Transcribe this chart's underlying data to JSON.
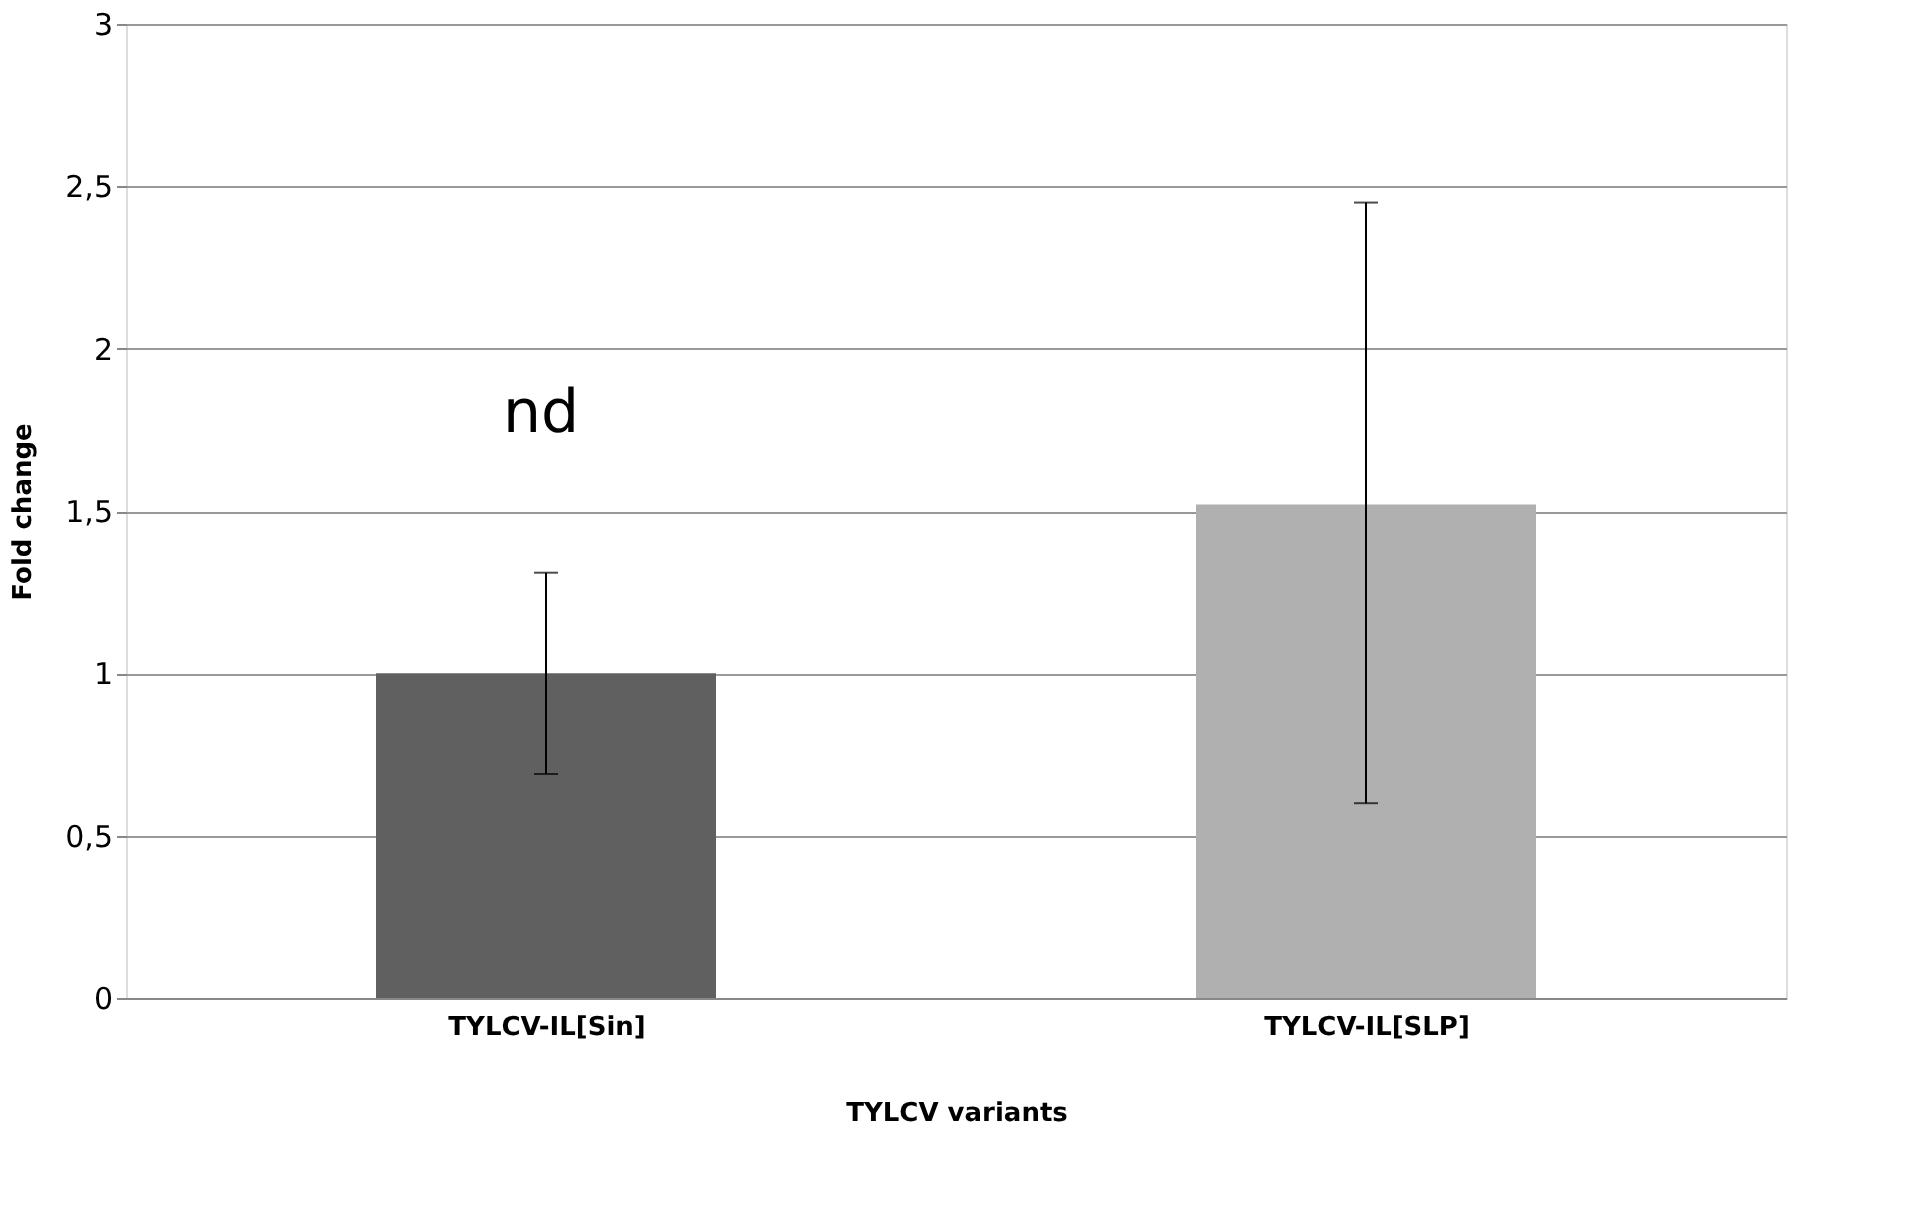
{
  "chart_data": {
    "type": "bar",
    "xlabel": "TYLCV variants",
    "ylabel": "Fold change",
    "categories": [
      "TYLCV-IL[Sin]",
      "TYLCV-IL[SLP]"
    ],
    "values": [
      1.0,
      1.52
    ],
    "colors": [
      "#606060",
      "#b0b0b0"
    ],
    "errors": [
      [
        0.69,
        1.31
      ],
      [
        0.6,
        2.45
      ]
    ],
    "ylim": [
      0,
      3
    ],
    "yticks": [
      0,
      {
        "value": 0.5,
        "label": "0,5"
      },
      1,
      {
        "value": 1.5,
        "label": "1,5"
      },
      2,
      {
        "value": 2.5,
        "label": "2,5"
      },
      3
    ],
    "grid": "y",
    "annotations": [
      "nd"
    ]
  }
}
